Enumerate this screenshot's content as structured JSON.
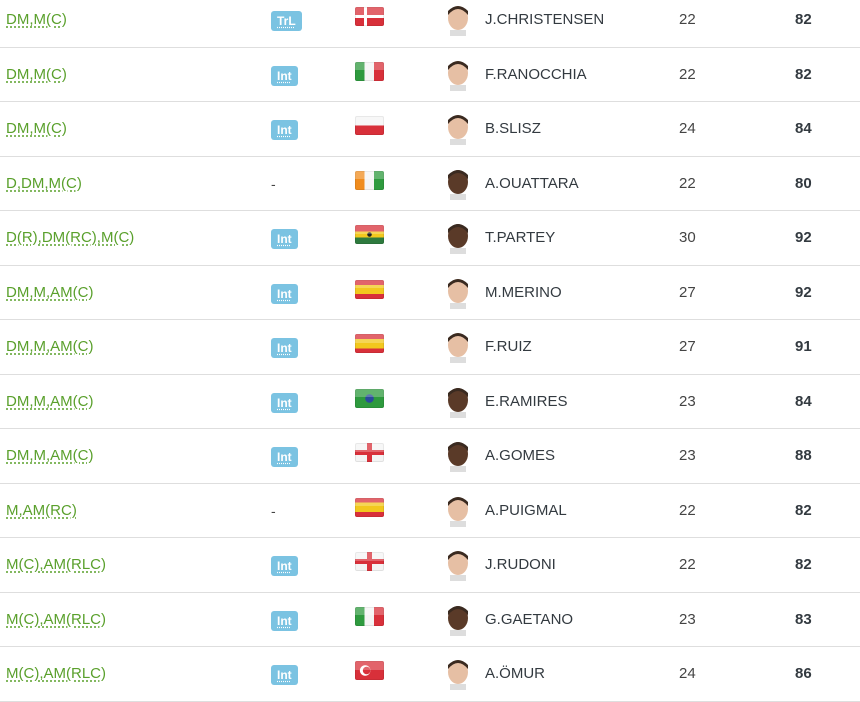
{
  "players": [
    {
      "position": "DM,M(C)",
      "badge": "TrL",
      "flag": "denmark",
      "name": "J.CHRISTENSEN",
      "age": "22",
      "rating": "82"
    },
    {
      "position": "DM,M(C)",
      "badge": "Int",
      "flag": "italy",
      "name": "F.RANOCCHIA",
      "age": "22",
      "rating": "82"
    },
    {
      "position": "DM,M(C)",
      "badge": "Int",
      "flag": "poland",
      "name": "B.SLISZ",
      "age": "24",
      "rating": "84"
    },
    {
      "position": "D,DM,M(C)",
      "badge": "-",
      "flag": "ivory-coast",
      "name": "A.OUATTARA",
      "age": "22",
      "rating": "80"
    },
    {
      "position": "D(R),DM(RC),M(C)",
      "badge": "Int",
      "flag": "ghana",
      "name": "T.PARTEY",
      "age": "30",
      "rating": "92"
    },
    {
      "position": "DM,M,AM(C)",
      "badge": "Int",
      "flag": "spain",
      "name": "M.MERINO",
      "age": "27",
      "rating": "92"
    },
    {
      "position": "DM,M,AM(C)",
      "badge": "Int",
      "flag": "spain",
      "name": "F.RUIZ",
      "age": "27",
      "rating": "91"
    },
    {
      "position": "DM,M,AM(C)",
      "badge": "Int",
      "flag": "brazil",
      "name": "E.RAMIRES",
      "age": "23",
      "rating": "84"
    },
    {
      "position": "DM,M,AM(C)",
      "badge": "Int",
      "flag": "england",
      "name": "A.GOMES",
      "age": "23",
      "rating": "88"
    },
    {
      "position": "M,AM(RC)",
      "badge": "-",
      "flag": "spain",
      "name": "A.PUIGMAL",
      "age": "22",
      "rating": "82"
    },
    {
      "position": "M(C),AM(RLC)",
      "badge": "Int",
      "flag": "england",
      "name": "J.RUDONI",
      "age": "22",
      "rating": "82"
    },
    {
      "position": "M(C),AM(RLC)",
      "badge": "Int",
      "flag": "italy",
      "name": "G.GAETANO",
      "age": "23",
      "rating": "83"
    },
    {
      "position": "M(C),AM(RLC)",
      "badge": "Int",
      "flag": "turkey",
      "name": "A.ÖMUR",
      "age": "24",
      "rating": "86"
    }
  ],
  "colors": {
    "position_link": "#5aa02c",
    "badge_bg": "#7bc3e2",
    "text": "#333a40"
  }
}
